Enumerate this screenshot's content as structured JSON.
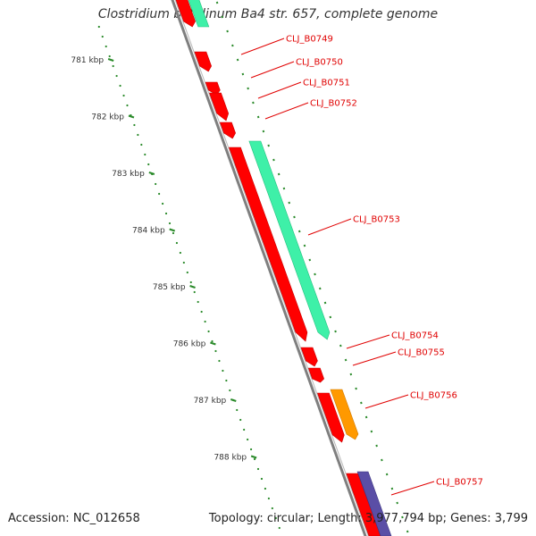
{
  "title": "Clostridium botulinum Ba4 str. 657, complete genome",
  "footer": {
    "accession": "Accession: NC_012658",
    "topology": "Topology: circular; Length: 3,977,794 bp; Genes: 3,799"
  },
  "scale_ticks": [
    {
      "kbp": 781,
      "label": "781 kbp"
    },
    {
      "kbp": 782,
      "label": "782 kbp"
    },
    {
      "kbp": 783,
      "label": "783 kbp"
    },
    {
      "kbp": 784,
      "label": "784 kbp"
    },
    {
      "kbp": 785,
      "label": "785 kbp"
    },
    {
      "kbp": 786,
      "label": "786 kbp"
    },
    {
      "kbp": 787,
      "label": "787 kbp"
    },
    {
      "kbp": 788,
      "label": "788 kbp"
    }
  ],
  "gene_labels": [
    "CLJ_B0749",
    "CLJ_B0750",
    "CLJ_B0751",
    "CLJ_B0752",
    "CLJ_B0753",
    "CLJ_B0754",
    "CLJ_B0755",
    "CLJ_B0756",
    "CLJ_B0757"
  ],
  "colors": {
    "backbone": "#7f7f7f",
    "cds": "#ff0000",
    "cds_dark": "#c80000",
    "green": "#3ef0a8",
    "orange": "#ff9900",
    "purple": "#5a4ea6",
    "lavender": "#d8d6ee",
    "tick_green": "#2a8a2a",
    "label_red": "#e00000"
  }
}
